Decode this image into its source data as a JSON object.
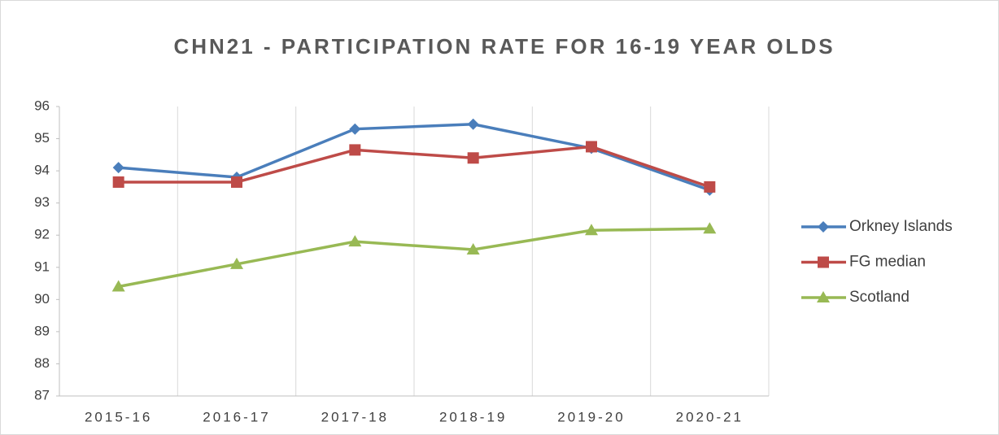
{
  "chart_data": {
    "type": "line",
    "title": "CHN21 - PARTICIPATION RATE FOR 16-19 YEAR OLDS",
    "categories": [
      "2015-16",
      "2016-17",
      "2017-18",
      "2018-19",
      "2019-20",
      "2020-21"
    ],
    "series": [
      {
        "name": "Orkney Islands",
        "color": "#4a7ebb",
        "marker": "diamond",
        "values": [
          94.1,
          93.8,
          95.3,
          95.45,
          94.7,
          93.4
        ]
      },
      {
        "name": "FG median",
        "color": "#be4b48",
        "marker": "square",
        "values": [
          93.65,
          93.65,
          94.65,
          94.4,
          94.75,
          93.5
        ]
      },
      {
        "name": "Scotland",
        "color": "#98b954",
        "marker": "triangle",
        "values": [
          90.4,
          91.1,
          91.8,
          91.55,
          92.15,
          92.2
        ]
      }
    ],
    "ylim": [
      87,
      96
    ],
    "yticks": [
      87,
      88,
      89,
      90,
      91,
      92,
      93,
      94,
      95,
      96
    ],
    "grid": "x",
    "legend": "right"
  }
}
